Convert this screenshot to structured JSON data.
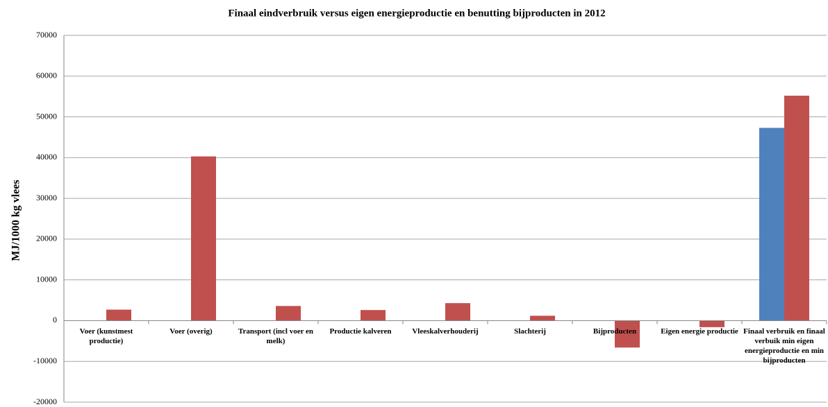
{
  "chart_data": {
    "type": "bar",
    "title": "Finaal eindverbruik  versus eigen energieproductie en benutting bijproducten in 2012",
    "y_label": "MJ/1000 kg vlees",
    "categories": [
      "Voer (kunstmest productie)",
      "Voer (overig)",
      "Transport (incl voer en melk)",
      "Productie kalveren",
      "Vleeskalverhouderij",
      "Slachterij",
      "Bijproducten",
      "Eigen energie productie",
      "Finaal verbruik en finaal verbuik min eigen energieproductie en min bijproducten"
    ],
    "series": [
      {
        "color": "#4f81bd",
        "values": [
          null,
          null,
          null,
          null,
          null,
          null,
          null,
          null,
          47300
        ]
      },
      {
        "color": "#c0504d",
        "values": [
          2700,
          40300,
          3600,
          2600,
          4300,
          1200,
          -6600,
          -1600,
          55200
        ]
      }
    ],
    "ylim": [
      -20000,
      70000
    ],
    "yticks": [
      -20000,
      -10000,
      0,
      10000,
      20000,
      30000,
      40000,
      50000,
      60000,
      70000
    ],
    "grid": true
  }
}
